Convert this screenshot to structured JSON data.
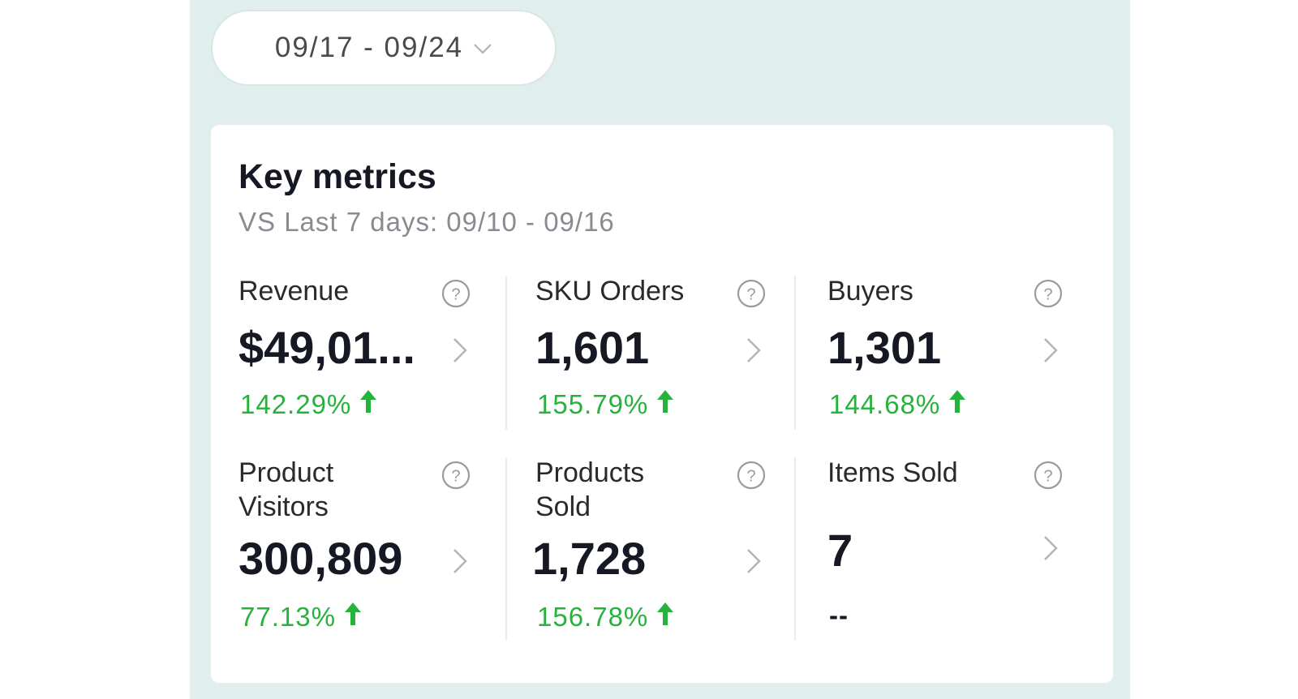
{
  "date_range": {
    "label": "09/17 - 09/24"
  },
  "key_metrics": {
    "title": "Key metrics",
    "comparison": "VS Last 7 days: 09/10 - 09/16",
    "metrics": [
      {
        "label": "Revenue",
        "value": "$49,01...",
        "change": "142.29%",
        "trend": "up"
      },
      {
        "label": "SKU Orders",
        "value": "1,601",
        "change": "155.79%",
        "trend": "up"
      },
      {
        "label": "Buyers",
        "value": "1,301",
        "change": "144.68%",
        "trend": "up"
      },
      {
        "label": "Product Visitors",
        "value": "300,809",
        "change": "77.13%",
        "trend": "up"
      },
      {
        "label": "Products Sold",
        "value": "1,728",
        "change": "156.78%",
        "trend": "up"
      },
      {
        "label": "Items Sold",
        "value": "7",
        "change": "--",
        "trend": "none"
      }
    ]
  },
  "colors": {
    "background": "#e0eeed",
    "card": "#ffffff",
    "positive": "#26b33c",
    "text_primary": "#161823",
    "text_secondary": "#8a8b91"
  },
  "icons": {
    "date_dropdown": "chevron-down-icon",
    "metric_help": "question-circle-icon",
    "metric_open": "chevron-right-icon",
    "trend_up": "arrow-up-icon"
  }
}
